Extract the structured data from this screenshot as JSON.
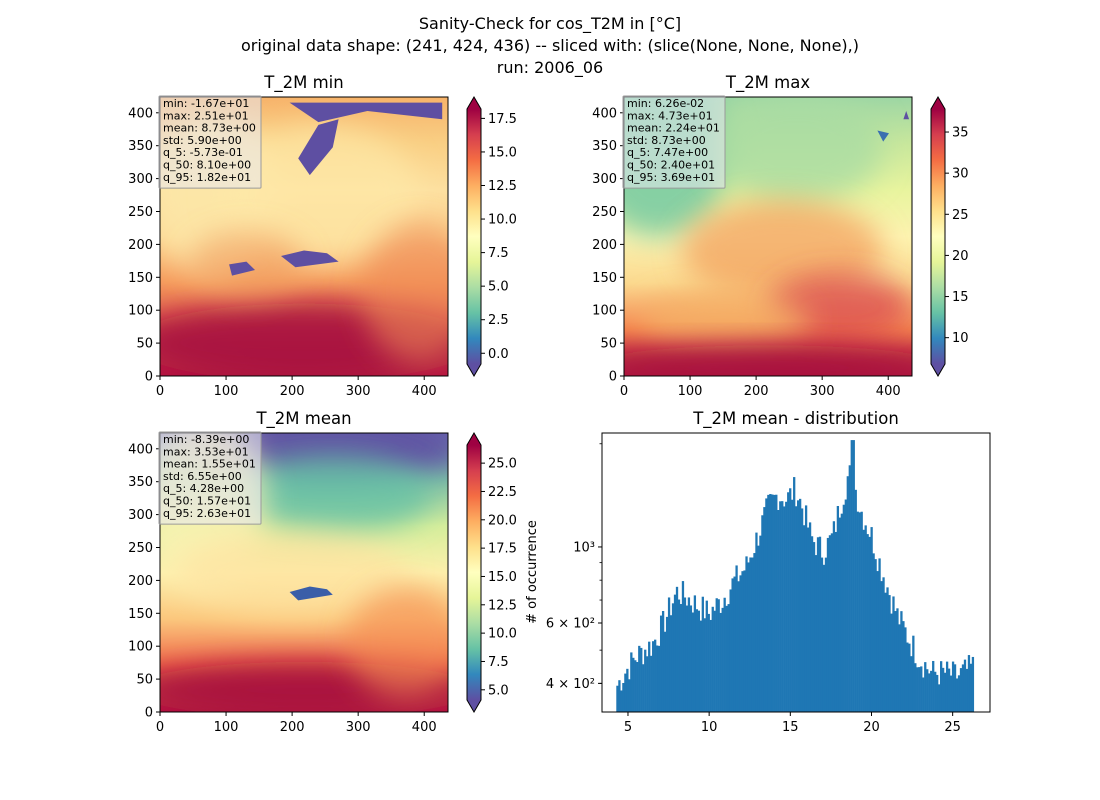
{
  "figure": {
    "suptitle_lines": [
      "Sanity-Check for cos_T2M in [°C]",
      "original data shape: (241, 424, 436) -- sliced with: (slice(None, None, None),)",
      "run: 2006_06"
    ]
  },
  "colors": {
    "colormap": "Spectral_r",
    "histogram_bar": "#1f77b4",
    "ocean_warm": "#a50d3f",
    "land_cold": "#5e4fa2"
  },
  "chart_data": [
    {
      "type": "heatmap",
      "title": "T_2M min",
      "x_ticks": [
        "0",
        "100",
        "200",
        "300",
        "400"
      ],
      "y_ticks": [
        "0",
        "50",
        "100",
        "150",
        "200",
        "250",
        "300",
        "350",
        "400"
      ],
      "xlim": [
        0,
        436
      ],
      "ylim": [
        0,
        424
      ],
      "colormap": "Spectral_r",
      "colorbar": {
        "range": [
          -0.8,
          18.2
        ],
        "ticks": [
          "0.0",
          "2.5",
          "5.0",
          "7.5",
          "10.0",
          "12.5",
          "15.0",
          "17.5"
        ],
        "tick_values": [
          0,
          2.5,
          5,
          7.5,
          10,
          12.5,
          15,
          17.5
        ],
        "extend": "both"
      },
      "stats": [
        "min: -1.67e+01",
        "max: 2.51e+01",
        "mean: 8.73e+00",
        "std: 5.90e+00",
        "q_5: -5.73e-01",
        "q_50: 8.10e+00",
        "q_95: 1.82e+01"
      ],
      "field": "min"
    },
    {
      "type": "heatmap",
      "title": "T_2M max",
      "x_ticks": [
        "0",
        "100",
        "200",
        "300",
        "400"
      ],
      "y_ticks": [
        "0",
        "50",
        "100",
        "150",
        "200",
        "250",
        "300",
        "350",
        "400"
      ],
      "xlim": [
        0,
        436
      ],
      "ylim": [
        0,
        424
      ],
      "colormap": "Spectral_r",
      "colorbar": {
        "range": [
          6.8,
          37.8
        ],
        "ticks": [
          "10",
          "15",
          "20",
          "25",
          "30",
          "35"
        ],
        "tick_values": [
          10,
          15,
          20,
          25,
          30,
          35
        ],
        "extend": "both"
      },
      "stats": [
        "min: 6.26e-02",
        "max: 4.73e+01",
        "mean: 2.24e+01",
        "std: 8.73e+00",
        "q_5: 7.47e+00",
        "q_50: 2.40e+01",
        "q_95: 3.69e+01"
      ],
      "field": "max"
    },
    {
      "type": "heatmap",
      "title": "T_2M mean",
      "x_ticks": [
        "0",
        "100",
        "200",
        "300",
        "400"
      ],
      "y_ticks": [
        "0",
        "50",
        "100",
        "150",
        "200",
        "250",
        "300",
        "350",
        "400"
      ],
      "xlim": [
        0,
        436
      ],
      "ylim": [
        0,
        424
      ],
      "colormap": "Spectral_r",
      "colorbar": {
        "range": [
          4.1,
          26.6
        ],
        "ticks": [
          "5.0",
          "7.5",
          "10.0",
          "12.5",
          "15.0",
          "17.5",
          "20.0",
          "22.5",
          "25.0"
        ],
        "tick_values": [
          5,
          7.5,
          10,
          12.5,
          15,
          17.5,
          20,
          22.5,
          25
        ],
        "extend": "both"
      },
      "stats": [
        "min: -8.39e+00",
        "max: 3.53e+01",
        "mean: 1.55e+01",
        "std: 6.55e+00",
        "q_5: 4.28e+00",
        "q_50: 1.57e+01",
        "q_95: 2.63e+01"
      ],
      "field": "mean"
    },
    {
      "type": "bar",
      "title": "T_2M mean - distribution",
      "ylabel": "# of occurrence",
      "xlabel": "",
      "x_ticks": [
        "5",
        "10",
        "15",
        "20",
        "25"
      ],
      "x_tick_values": [
        5,
        10,
        15,
        20,
        25
      ],
      "y_ticks": [
        "4 × 10²",
        "6 × 10²",
        "10³"
      ],
      "y_tick_values": [
        400,
        600,
        1000
      ],
      "xlim": [
        3.4,
        27.3
      ],
      "ylim": [
        330,
        2150
      ],
      "y_scale": "log",
      "bin_range": [
        4.28,
        26.3
      ],
      "num_bins": 180,
      "anchors_x": [
        4.28,
        4.8,
        5.5,
        6.5,
        7.2,
        8.0,
        8.5,
        9.2,
        10.0,
        10.8,
        11.5,
        12.3,
        13.0,
        13.6,
        14.2,
        14.8,
        15.3,
        15.8,
        16.3,
        17.0,
        17.6,
        18.2,
        18.6,
        18.9,
        19.3,
        20.0,
        20.5,
        21.0,
        21.6,
        22.3,
        23.0,
        23.7,
        24.5,
        25.3,
        26.3
      ],
      "anchors_y": [
        390,
        430,
        480,
        520,
        600,
        740,
        720,
        680,
        640,
        700,
        790,
        880,
        1080,
        1300,
        1420,
        1380,
        1480,
        1280,
        1060,
        970,
        1070,
        1400,
        1640,
        1550,
        1300,
        1080,
        900,
        760,
        630,
        540,
        470,
        430,
        430,
        420,
        450
      ]
    }
  ]
}
